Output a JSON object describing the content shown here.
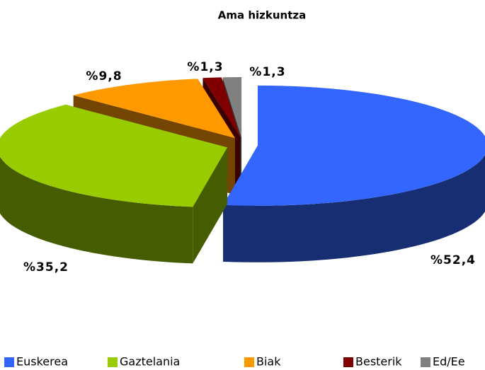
{
  "chart_data": {
    "type": "pie",
    "title": "Ama hizkuntza",
    "categories": [
      "Euskerea",
      "Gaztelania",
      "Biak",
      "Besterik",
      "Ed/Ee"
    ],
    "values": [
      52.4,
      35.2,
      9.8,
      1.3,
      1.3
    ],
    "value_labels": [
      "%52,4",
      "%35,2",
      "%9,8",
      "%1,3",
      "%1,3"
    ],
    "colors": [
      "#3366ff",
      "#99cc00",
      "#ff9900",
      "#800000",
      "#808080"
    ]
  }
}
